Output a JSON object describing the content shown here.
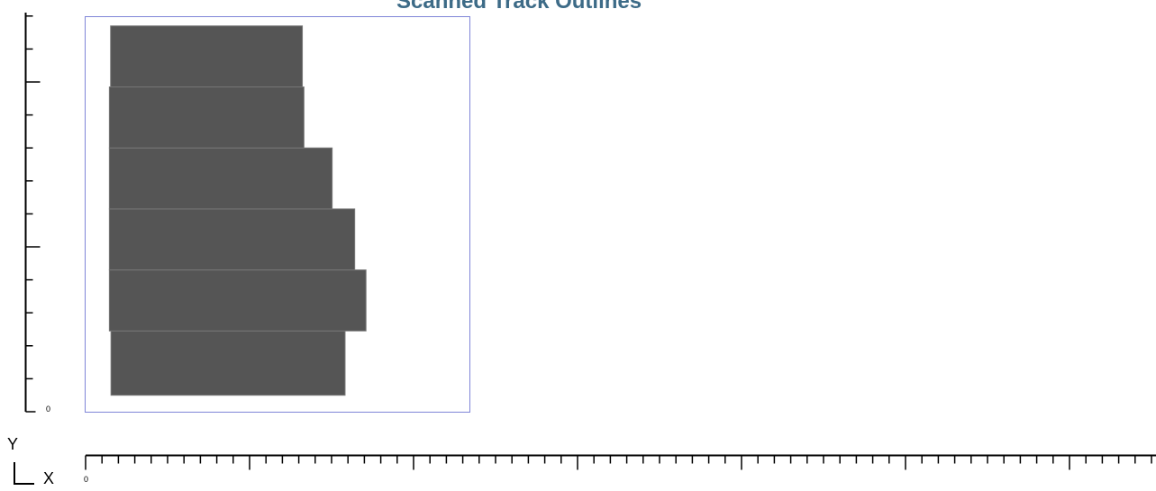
{
  "title": "Scanned Track Outlines",
  "colors": {
    "title": "#3d6b87",
    "bar_fill": "#555555",
    "bar_border": "#777777",
    "frame": "#7f85d8",
    "axis": "#000000"
  },
  "axes": {
    "y_origin_label": "0",
    "x_origin_label": "0",
    "y_label": "Y",
    "x_label": "X"
  },
  "chart_data": {
    "type": "bar",
    "orientation": "horizontal",
    "title": "Scanned Track Outlines",
    "xlabel": "X",
    "ylabel": "Y",
    "xlim": [
      0,
      130
    ],
    "ylim": [
      0,
      15
    ],
    "x_tick_step": 2,
    "x_major_every": 10,
    "y_tick_step": 1,
    "y_major_every": 5,
    "grid": false,
    "bars": [
      {
        "y_start": 0.5,
        "y_end": 2.45,
        "x_start": 0.35,
        "x_end": 4.5
      },
      {
        "y_start": 2.45,
        "y_end": 4.3,
        "x_start": 0.15,
        "x_end": 4.7
      },
      {
        "y_start": 4.3,
        "y_end": 6.15,
        "x_start": 0.15,
        "x_end": 4.5
      },
      {
        "y_start": 6.15,
        "y_end": 8.0,
        "x_start": 0.15,
        "x_end": 4.1
      },
      {
        "y_start": 8.0,
        "y_end": 9.85,
        "x_start": 0.15,
        "x_end": 3.6
      },
      {
        "y_start": 9.85,
        "y_end": 11.7,
        "x_start": 0.3,
        "x_end": 3.7
      }
    ]
  }
}
